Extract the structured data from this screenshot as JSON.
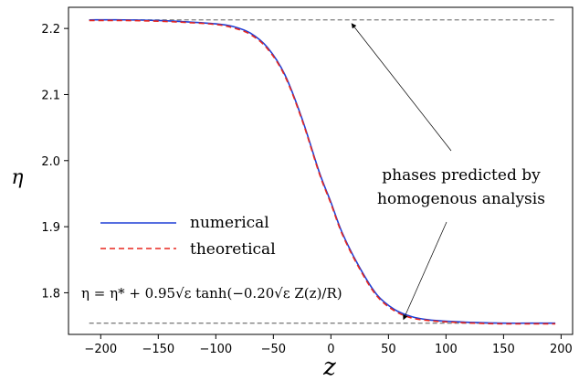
{
  "chart_data": {
    "type": "line",
    "title": "",
    "xlabel": "z",
    "ylabel": "η",
    "xlim": [
      -228,
      210
    ],
    "ylim": [
      1.737,
      2.232
    ],
    "x_ticks": [
      -200,
      -150,
      -100,
      -50,
      0,
      50,
      100,
      150,
      200
    ],
    "y_ticks": [
      1.8,
      1.9,
      2.0,
      2.1,
      2.2
    ],
    "x_tick_labels": [
      "−200",
      "−150",
      "−100",
      "−50",
      "0",
      "50",
      "100",
      "150",
      "200"
    ],
    "y_tick_labels": [
      "1.8",
      "1.9",
      "2.0",
      "2.1",
      "2.2"
    ],
    "grid": false,
    "legend_position": "center-left",
    "series": [
      {
        "name": "numerical",
        "color": "#1f3fd6",
        "style": "solid",
        "x": [
          -210,
          -180,
          -150,
          -125,
          -100,
          -85,
          -70,
          -55,
          -40,
          -25,
          -10,
          0,
          10,
          25,
          40,
          55,
          70,
          85,
          100,
          125,
          150,
          180,
          195
        ],
        "y": [
          2.213,
          2.213,
          2.212,
          2.21,
          2.207,
          2.203,
          2.193,
          2.171,
          2.13,
          2.063,
          1.982,
          1.937,
          1.89,
          1.838,
          1.797,
          1.775,
          1.764,
          1.759,
          1.757,
          1.755,
          1.754,
          1.754,
          1.754
        ]
      },
      {
        "name": "theoretical",
        "color": "#e8261e",
        "style": "dashed",
        "x": [
          -210,
          -180,
          -150,
          -125,
          -100,
          -85,
          -70,
          -55,
          -40,
          -25,
          -10,
          0,
          10,
          25,
          40,
          55,
          70,
          85,
          100,
          125,
          150,
          180,
          195
        ],
        "y": [
          2.212,
          2.212,
          2.211,
          2.209,
          2.206,
          2.201,
          2.191,
          2.169,
          2.128,
          2.061,
          1.98,
          1.935,
          1.888,
          1.836,
          1.795,
          1.773,
          1.762,
          1.758,
          1.756,
          1.754,
          1.753,
          1.753,
          1.753
        ]
      }
    ],
    "reference_lines": [
      {
        "y": 2.213,
        "color": "#808080",
        "style": "dashed",
        "x_range": [
          -210,
          195
        ]
      },
      {
        "y": 1.754,
        "color": "#808080",
        "style": "dashed",
        "x_range": [
          -210,
          195
        ]
      }
    ],
    "annotation": {
      "lines": [
        "phases predicted by",
        "homogenous analysis"
      ],
      "arrow_targets": [
        {
          "x": 18,
          "y": 2.213
        },
        {
          "x": 63,
          "y": 1.754
        }
      ]
    },
    "formula": "η = η* + 0.95√ε tanh(−0.20√ε Z(z)/R)"
  }
}
